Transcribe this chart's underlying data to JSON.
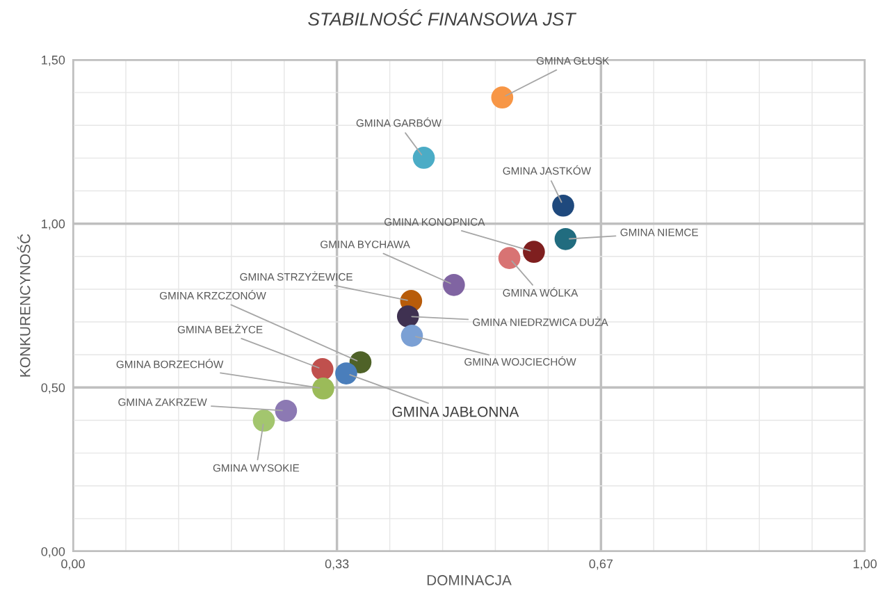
{
  "chart_data": {
    "type": "scatter",
    "title": "STABILNOŚĆ FINANSOWA JST",
    "xlabel": "DOMINACJA",
    "ylabel": "KONKURENCYNOŚĆ",
    "xlim": [
      0,
      1
    ],
    "ylim": [
      0,
      1.5
    ],
    "xticks": [
      {
        "value": 0,
        "label": "0,00"
      },
      {
        "value": 0.0667,
        "label": null
      },
      {
        "value": 0.1333,
        "label": null
      },
      {
        "value": 0.2,
        "label": null
      },
      {
        "value": 0.2667,
        "label": null
      },
      {
        "value": 0.3333,
        "label": "0,33"
      },
      {
        "value": 0.4,
        "label": null
      },
      {
        "value": 0.4667,
        "label": null
      },
      {
        "value": 0.5333,
        "label": null
      },
      {
        "value": 0.6,
        "label": null
      },
      {
        "value": 0.6667,
        "label": "0,67"
      },
      {
        "value": 0.7333,
        "label": null
      },
      {
        "value": 0.8,
        "label": null
      },
      {
        "value": 0.8667,
        "label": null
      },
      {
        "value": 0.9333,
        "label": null
      },
      {
        "value": 1,
        "label": "1,00"
      }
    ],
    "yticks": [
      {
        "value": 0,
        "label": "0,00"
      },
      {
        "value": 0.1,
        "label": null
      },
      {
        "value": 0.2,
        "label": null
      },
      {
        "value": 0.3,
        "label": null
      },
      {
        "value": 0.4,
        "label": null
      },
      {
        "value": 0.5,
        "label": "0,50"
      },
      {
        "value": 0.6,
        "label": null
      },
      {
        "value": 0.7,
        "label": null
      },
      {
        "value": 0.8,
        "label": null
      },
      {
        "value": 0.9,
        "label": null
      },
      {
        "value": 1,
        "label": "1,00"
      },
      {
        "value": 1.1,
        "label": null
      },
      {
        "value": 1.2,
        "label": null
      },
      {
        "value": 1.3,
        "label": null
      },
      {
        "value": 1.4,
        "label": null
      },
      {
        "value": 1.5,
        "label": "1,50"
      }
    ],
    "grid": true,
    "legend": false,
    "marker": "circle",
    "series": [
      {
        "name": "GMINA GŁUSK",
        "color": "#f79646",
        "x": [
          0.542
        ],
        "values": [
          1.385
        ]
      },
      {
        "name": "GMINA GARBÓW",
        "color": "#4bacc6",
        "x": [
          0.443
        ],
        "values": [
          1.201
        ]
      },
      {
        "name": "GMINA JASTKÓW",
        "color": "#1f497d",
        "x": [
          0.619
        ],
        "values": [
          1.055
        ]
      },
      {
        "name": "GMINA NIEMCE",
        "color": "#216c7f",
        "x": [
          0.622
        ],
        "values": [
          0.953
        ]
      },
      {
        "name": "GMINA KONOPNICA",
        "color": "#7f1f1f",
        "x": [
          0.582
        ],
        "values": [
          0.914
        ]
      },
      {
        "name": "GMINA WÓLKA",
        "color": "#d87373",
        "x": [
          0.551
        ],
        "values": [
          0.895
        ]
      },
      {
        "name": "GMINA BYCHAWA",
        "color": "#8064a2",
        "x": [
          0.481
        ],
        "values": [
          0.813
        ]
      },
      {
        "name": "GMINA STRZYŻEWICE",
        "color": "#b85c0a",
        "x": [
          0.427
        ],
        "values": [
          0.764
        ]
      },
      {
        "name": "GMINA NIEDRZWICA DUŻA",
        "color": "#3f3151",
        "x": [
          0.423
        ],
        "values": [
          0.717
        ]
      },
      {
        "name": "GMINA WOJCIECHÓW",
        "color": "#7ba0d4",
        "x": [
          0.428
        ],
        "values": [
          0.658
        ]
      },
      {
        "name": "GMINA KRZCZONÓW",
        "color": "#4f6228",
        "x": [
          0.363
        ],
        "values": [
          0.577
        ]
      },
      {
        "name": "GMINA BEŁŻYCE",
        "color": "#c0504d",
        "x": [
          0.315
        ],
        "values": [
          0.556
        ]
      },
      {
        "name": "GMINA JABŁONNA",
        "color": "#4a7ebb",
        "x": [
          0.345
        ],
        "values": [
          0.543
        ]
      },
      {
        "name": "GMINA BORZECHÓW",
        "color": "#9bbb59",
        "x": [
          0.316
        ],
        "values": [
          0.497
        ]
      },
      {
        "name": "GMINA ZAKRZEW",
        "color": "#8c79b3",
        "x": [
          0.269
        ],
        "values": [
          0.429
        ]
      },
      {
        "name": "GMINA WYSOKIE",
        "color": "#a3c66e",
        "x": [
          0.241
        ],
        "values": [
          0.399
        ]
      }
    ]
  }
}
